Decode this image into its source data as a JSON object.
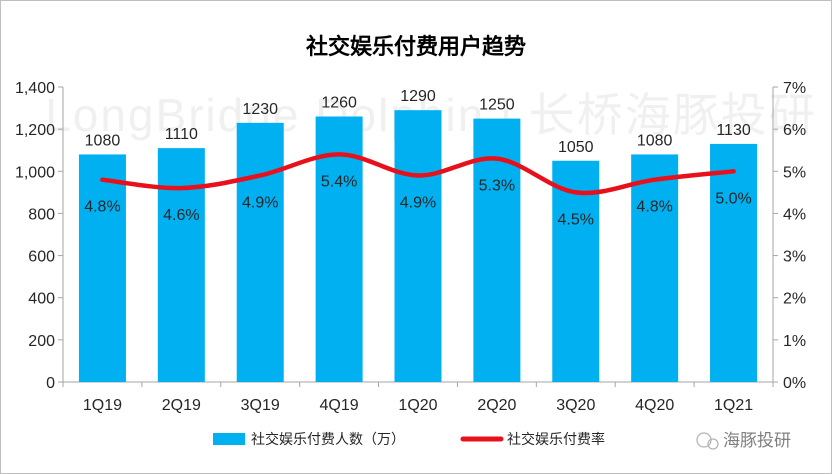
{
  "chart_data": {
    "type": "bar",
    "title": "社交娱乐付费用户趋势",
    "categories": [
      "1Q19",
      "2Q19",
      "3Q19",
      "4Q19",
      "1Q20",
      "2Q20",
      "3Q20",
      "4Q20",
      "1Q21"
    ],
    "series": [
      {
        "name": "社交娱乐付费人数（万）",
        "type": "bar",
        "axis": "left",
        "values": [
          1080,
          1110,
          1230,
          1260,
          1290,
          1250,
          1050,
          1080,
          1130
        ],
        "labels": [
          "1080",
          "1110",
          "1230",
          "1260",
          "1290",
          "1250",
          "1050",
          "1080",
          "1130"
        ]
      },
      {
        "name": "社交娱乐付费率",
        "type": "line",
        "axis": "right",
        "values": [
          4.8,
          4.6,
          4.9,
          5.4,
          4.9,
          5.3,
          4.5,
          4.8,
          5.0
        ],
        "labels": [
          "4.8%",
          "4.6%",
          "4.9%",
          "5.4%",
          "4.9%",
          "5.3%",
          "4.5%",
          "4.8%",
          "5.0%"
        ]
      }
    ],
    "y_left": {
      "min": 0,
      "max": 1400,
      "ticks": [
        0,
        200,
        400,
        600,
        800,
        1000,
        1200,
        1400
      ],
      "tick_labels": [
        "0",
        "200",
        "400",
        "600",
        "800",
        "1,000",
        "1,200",
        "1,400"
      ]
    },
    "y_right": {
      "min": 0,
      "max": 7,
      "ticks": [
        0,
        1,
        2,
        3,
        4,
        5,
        6,
        7
      ],
      "tick_labels": [
        "0%",
        "1%",
        "2%",
        "3%",
        "4%",
        "5%",
        "6%",
        "7%"
      ]
    },
    "grid": false,
    "legend_position": "bottom",
    "colors": {
      "bar": "#00b0f0",
      "line": "#e8101a",
      "axis": "#a6a6a6",
      "text": "#262626"
    }
  },
  "watermark": {
    "text": "LongBridge Dolphin | 长桥海豚投研"
  },
  "brand": {
    "label": "海豚投研"
  }
}
